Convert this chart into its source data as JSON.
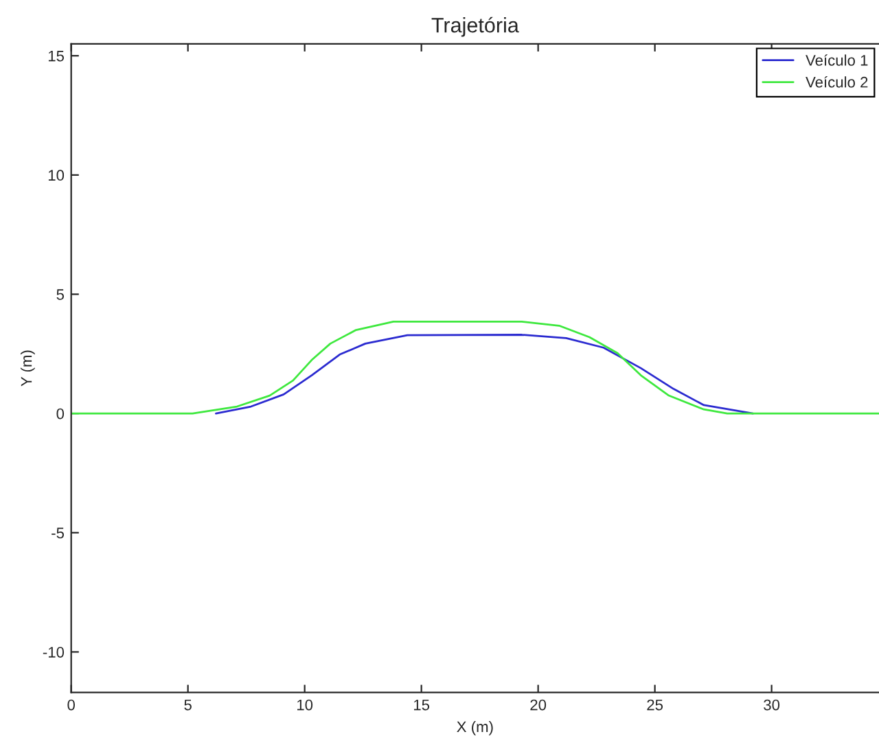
{
  "chart_data": {
    "type": "line",
    "title": "Trajetória",
    "xlabel": "X (m)",
    "ylabel": "Y (m)",
    "xlim": [
      0,
      34.6
    ],
    "ylim": [
      -11.7,
      15.5
    ],
    "xticks": [
      0,
      5,
      10,
      15,
      20,
      25,
      30
    ],
    "yticks": [
      -10,
      -5,
      0,
      5,
      10,
      15
    ],
    "grid": false,
    "legend": "top right",
    "line_style": "solid",
    "marker": "none",
    "series": [
      {
        "name": "Veículo 1",
        "color": "#2b2bd0",
        "x": [
          6.2,
          7.7,
          9.1,
          10.3,
          11.5,
          12.6,
          14.4,
          19.3,
          21.2,
          22.8,
          24.4,
          25.8,
          27.1,
          29.2
        ],
        "values": [
          0,
          0.29,
          0.8,
          1.6,
          2.47,
          2.93,
          3.28,
          3.3,
          3.16,
          2.76,
          1.9,
          1.03,
          0.35,
          0
        ]
      },
      {
        "name": "Veículo 2",
        "color": "#3ee83e",
        "x": [
          0,
          5.2,
          7.1,
          8.5,
          9.5,
          10.3,
          11.1,
          12.2,
          13.8,
          19.3,
          20.9,
          22.2,
          23.4,
          24.4,
          25.6,
          27.1,
          28.1,
          34.6
        ],
        "values": [
          0,
          0,
          0.29,
          0.75,
          1.38,
          2.24,
          2.93,
          3.5,
          3.85,
          3.85,
          3.68,
          3.2,
          2.53,
          1.6,
          0.75,
          0.17,
          0,
          0
        ]
      }
    ]
  }
}
